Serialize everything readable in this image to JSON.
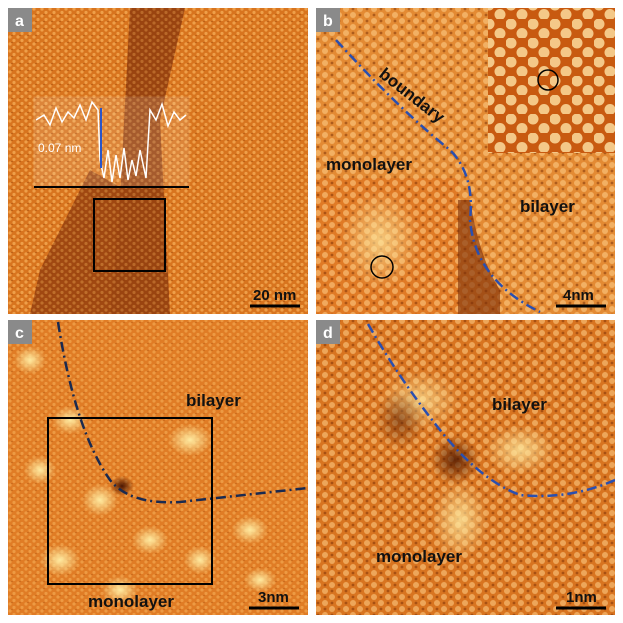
{
  "panels": [
    {
      "letter": "a",
      "labels": [
        "0.07 nm"
      ],
      "scale_bar": "20 nm"
    },
    {
      "letter": "b",
      "labels": [
        "boundary",
        "monolayer",
        "bilayer"
      ],
      "scale_bar": "4nm"
    },
    {
      "letter": "c",
      "labels": [
        "bilayer",
        "monolayer"
      ],
      "scale_bar": "3nm"
    },
    {
      "letter": "d",
      "labels": [
        "bilayer",
        "monolayer"
      ],
      "scale_bar": "1nm"
    }
  ]
}
